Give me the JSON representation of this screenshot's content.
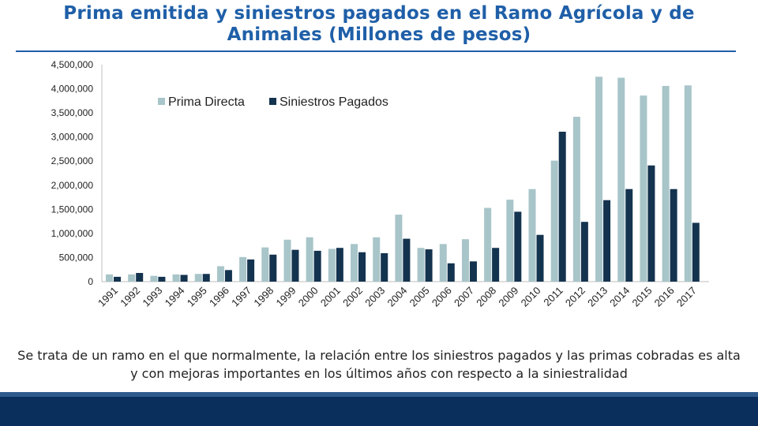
{
  "page": {
    "title": "Prima emitida y siniestros pagados en el Ramo Agrícola y de Animales (Millones de pesos)",
    "caption": "Se trata de un ramo en el que normalmente, la relación entre los siniestros pagados y las primas cobradas es alta y con mejoras importantes en los últimos años con respecto a la siniestralidad"
  },
  "colors": {
    "title": "#1f5fa8",
    "prima": "#a8c5c9",
    "siniestros": "#14334f",
    "footer": "#0b2f5c"
  },
  "chart_data": {
    "type": "bar",
    "title": "Prima emitida y siniestros pagados en el Ramo Agrícola y de Animales (Millones de pesos)",
    "xlabel": "",
    "ylabel": "",
    "ylim": [
      0,
      4500000
    ],
    "yticks": [
      0,
      500000,
      1000000,
      1500000,
      2000000,
      2500000,
      3000000,
      3500000,
      4000000,
      4500000
    ],
    "ytick_labels": [
      "0",
      "500,000",
      "1,000,000",
      "1,500,000",
      "2,000,000",
      "2,500,000",
      "3,000,000",
      "3,500,000",
      "4,000,000",
      "4,500,000"
    ],
    "legend_position": "top-left",
    "grid": false,
    "categories": [
      "1991",
      "1992",
      "1993",
      "1994",
      "1995",
      "1996",
      "1997",
      "1998",
      "1999",
      "2000",
      "2001",
      "2002",
      "2003",
      "2004",
      "2005",
      "2006",
      "2007",
      "2008",
      "2009",
      "2010",
      "2011",
      "2012",
      "2013",
      "2014",
      "2015",
      "2016",
      "2017"
    ],
    "series": [
      {
        "name": "Prima Directa",
        "values": [
          150000,
          150000,
          120000,
          150000,
          160000,
          320000,
          510000,
          710000,
          870000,
          920000,
          680000,
          780000,
          920000,
          1390000,
          700000,
          780000,
          880000,
          1530000,
          1700000,
          1920000,
          2510000,
          3420000,
          4250000,
          4230000,
          3860000,
          4060000,
          4070000
        ]
      },
      {
        "name": "Siniestros Pagados",
        "values": [
          100000,
          180000,
          100000,
          140000,
          160000,
          240000,
          460000,
          560000,
          660000,
          640000,
          700000,
          610000,
          590000,
          890000,
          670000,
          380000,
          420000,
          700000,
          1450000,
          970000,
          3110000,
          1240000,
          1690000,
          1920000,
          2410000,
          1920000,
          1220000
        ]
      }
    ]
  }
}
